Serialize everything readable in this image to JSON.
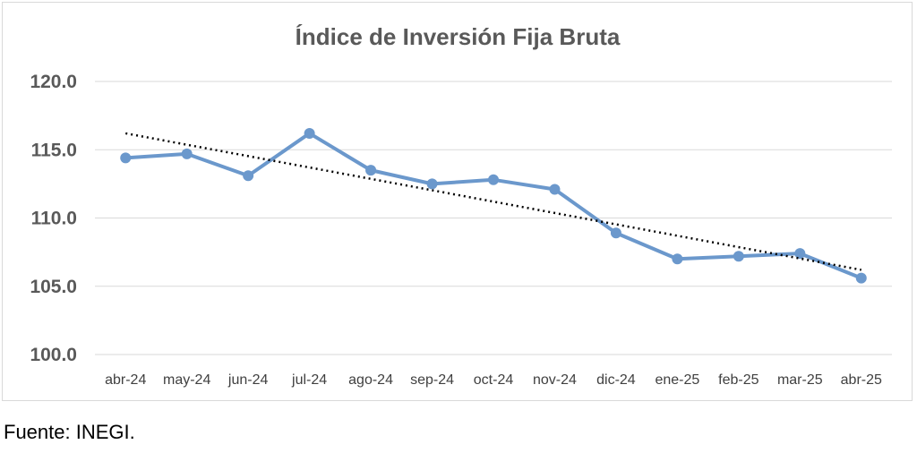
{
  "source_note": "Fuente: INEGI.",
  "chart_data": {
    "type": "line",
    "title": "Índice de Inversión Fija Bruta",
    "xlabel": "",
    "ylabel": "",
    "categories": [
      "abr-24",
      "may-24",
      "jun-24",
      "jul-24",
      "ago-24",
      "sep-24",
      "oct-24",
      "nov-24",
      "dic-24",
      "ene-25",
      "feb-25",
      "mar-25",
      "abr-25"
    ],
    "series": [
      {
        "values": [
          114.4,
          114.7,
          113.1,
          116.2,
          113.5,
          112.5,
          112.8,
          112.1,
          108.9,
          107.0,
          107.2,
          107.4,
          105.6
        ],
        "color": "#6b98cc"
      }
    ],
    "trendline": {
      "style": "dotted",
      "color": "#000000",
      "start": 116.2,
      "end": 106.2
    },
    "ylim": [
      100,
      120
    ],
    "yticks": [
      "100.0",
      "105.0",
      "110.0",
      "115.0",
      "120.0"
    ],
    "grid": true,
    "legend": "none"
  }
}
